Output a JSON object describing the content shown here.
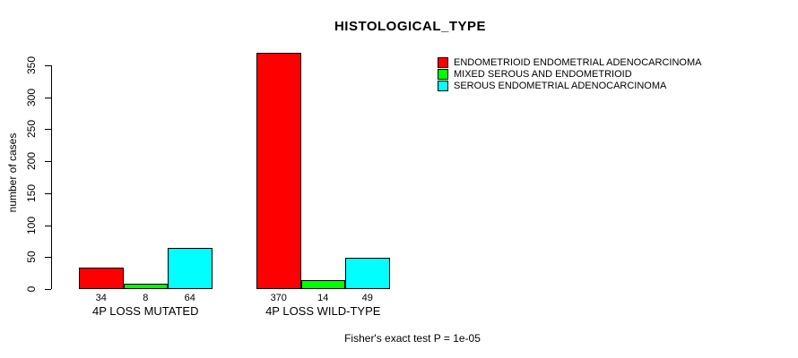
{
  "chart_data": {
    "type": "bar",
    "title": "HISTOLOGICAL_TYPE",
    "ylabel": "number of cases",
    "xlabel": "",
    "categories": [
      "4P LOSS MUTATED",
      "4P LOSS WILD-TYPE"
    ],
    "series": [
      {
        "name": "ENDOMETRIOID ENDOMETRIAL ADENOCARCINOMA",
        "color": "#ff0000",
        "values": [
          34,
          370
        ]
      },
      {
        "name": "MIXED SEROUS AND ENDOMETRIOID",
        "color": "#00ff00",
        "values": [
          8,
          14
        ]
      },
      {
        "name": "SEROUS ENDOMETRIAL ADENOCARCINOMA",
        "color": "#00ffff",
        "values": [
          64,
          49
        ]
      }
    ],
    "yticks": [
      0,
      50,
      100,
      150,
      200,
      250,
      300,
      350
    ],
    "ylim": [
      0,
      350
    ],
    "bar_value_labels": true,
    "grid": false,
    "legend_position": "top-right",
    "annotation": "Fisher's exact test P = 1e-05"
  }
}
